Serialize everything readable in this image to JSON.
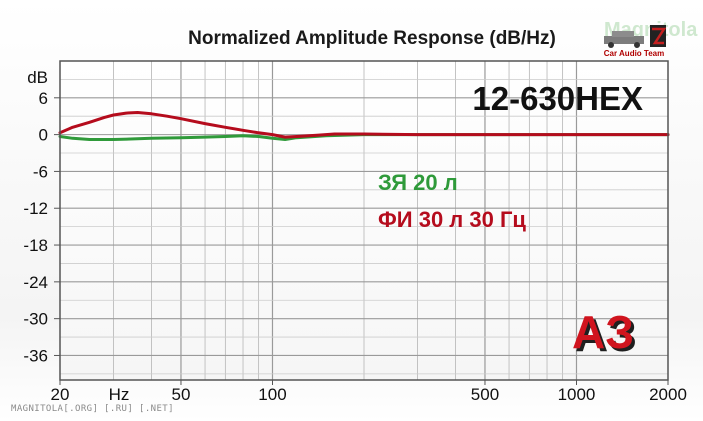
{
  "chart_data": {
    "type": "line",
    "title": "Normalized Amplitude Response (dB/Hz)",
    "xscale": "log",
    "xlim": [
      20,
      2000
    ],
    "ylim": [
      -40,
      12
    ],
    "ylabel": "dB",
    "xlabel": "Hz",
    "grid": true,
    "y_ticks": [
      6,
      0,
      -6,
      -12,
      -18,
      -24,
      -30,
      -36
    ],
    "x_tick_labels": [
      "20",
      "50",
      "100",
      "500",
      "1000",
      "2000"
    ],
    "x_tick_values": [
      20,
      50,
      100,
      500,
      1000,
      2000
    ],
    "model": "12-630HEX",
    "legend": [
      {
        "label": "ЗЯ 20 л",
        "color": "#2f9a3a"
      },
      {
        "label": "ФИ 30 л 30 Гц",
        "color": "#b50c1d"
      }
    ],
    "series": [
      {
        "color": "#2f9a3a",
        "x": [
          20,
          22,
          25,
          30,
          35,
          40,
          50,
          60,
          70,
          80,
          90,
          100,
          110,
          120,
          150,
          200,
          300,
          500,
          1000,
          2000
        ],
        "y": [
          -0.3,
          -0.6,
          -0.8,
          -0.8,
          -0.7,
          -0.6,
          -0.5,
          -0.4,
          -0.3,
          -0.2,
          -0.3,
          -0.6,
          -0.8,
          -0.5,
          -0.2,
          0.0,
          0.0,
          0.0,
          0.0,
          0.0
        ]
      },
      {
        "color": "#b50c1d",
        "x": [
          20,
          22,
          25,
          28,
          30,
          33,
          36,
          40,
          45,
          50,
          60,
          70,
          80,
          90,
          100,
          110,
          120,
          140,
          160,
          200,
          300,
          500,
          1000,
          2000
        ],
        "y": [
          0.3,
          1.2,
          2.0,
          2.8,
          3.2,
          3.5,
          3.6,
          3.4,
          3.0,
          2.6,
          1.8,
          1.2,
          0.7,
          0.3,
          0.0,
          -0.4,
          -0.3,
          -0.1,
          0.1,
          0.1,
          0.0,
          0.0,
          0.0,
          0.0
        ]
      }
    ]
  },
  "logos": {
    "corner_logo_text": "Magnitola",
    "corner_logo_subtext": "Car Audio Team",
    "badge_text": "АЗ"
  },
  "footer": {
    "watermark": "MAGNITOLA[.ORG] [.RU] [.NET]"
  }
}
